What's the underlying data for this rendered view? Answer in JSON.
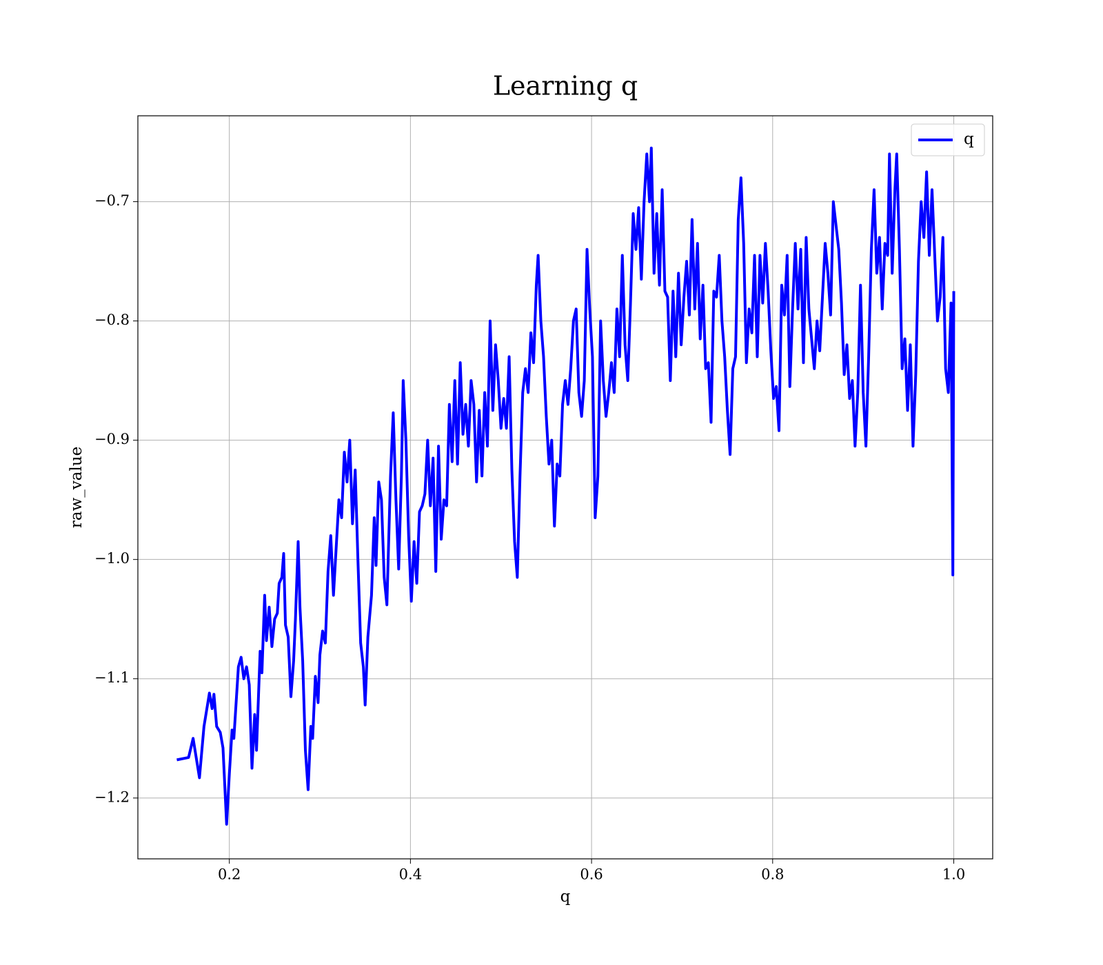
{
  "chart_data": {
    "type": "line",
    "title": "Learning q",
    "x_label": "q",
    "y_label": "raw_value",
    "legend": "upper right",
    "grid": true,
    "xlim": [
      0.099,
      1.043
    ],
    "ylim": [
      -1.251,
      -0.628
    ],
    "xticks": [
      0.2,
      0.4,
      0.6,
      0.8,
      {
        "value": 1,
        "label": "1.0"
      }
    ],
    "yticks": [
      {
        "value": -0.7,
        "label": "−0.7"
      },
      {
        "value": -0.8,
        "label": "−0.8"
      },
      {
        "value": -0.9,
        "label": "−0.9"
      },
      {
        "value": -1,
        "label": "−1.0"
      },
      {
        "value": -1.1,
        "label": "−1.1"
      },
      {
        "value": -1.2,
        "label": "−1.2"
      }
    ],
    "x": [
      0.142,
      0.155,
      0.16,
      0.167,
      0.172,
      0.178,
      0.181,
      0.183,
      0.186,
      0.19,
      0.193,
      0.197,
      0.2,
      0.203,
      0.205,
      0.21,
      0.213,
      0.216,
      0.219,
      0.222,
      0.225,
      0.228,
      0.23,
      0.234,
      0.236,
      0.239,
      0.241,
      0.244,
      0.247,
      0.25,
      0.253,
      0.255,
      0.258,
      0.26,
      0.262,
      0.265,
      0.268,
      0.271,
      0.273,
      0.276,
      0.278,
      0.281,
      0.284,
      0.287,
      0.29,
      0.292,
      0.295,
      0.298,
      0.3,
      0.303,
      0.306,
      0.309,
      0.312,
      0.315,
      0.318,
      0.321,
      0.324,
      0.327,
      0.33,
      0.333,
      0.336,
      0.339,
      0.342,
      0.345,
      0.348,
      0.35,
      0.353,
      0.357,
      0.36,
      0.362,
      0.365,
      0.368,
      0.371,
      0.374,
      0.378,
      0.381,
      0.384,
      0.387,
      0.39,
      0.392,
      0.395,
      0.398,
      0.401,
      0.404,
      0.407,
      0.41,
      0.413,
      0.416,
      0.419,
      0.422,
      0.425,
      0.428,
      0.431,
      0.434,
      0.437,
      0.44,
      0.443,
      0.446,
      0.449,
      0.452,
      0.455,
      0.458,
      0.461,
      0.464,
      0.467,
      0.47,
      0.473,
      0.476,
      0.479,
      0.482,
      0.485,
      0.488,
      0.491,
      0.494,
      0.497,
      0.5,
      0.503,
      0.506,
      0.509,
      0.512,
      0.515,
      0.518,
      0.521,
      0.524,
      0.527,
      0.53,
      0.533,
      0.536,
      0.539,
      0.541,
      0.544,
      0.547,
      0.55,
      0.553,
      0.556,
      0.559,
      0.562,
      0.565,
      0.568,
      0.571,
      0.574,
      0.577,
      0.58,
      0.583,
      0.586,
      0.589,
      0.592,
      0.595,
      0.598,
      0.601,
      0.604,
      0.607,
      0.61,
      0.613,
      0.616,
      0.619,
      0.622,
      0.625,
      0.628,
      0.631,
      0.634,
      0.637,
      0.64,
      0.643,
      0.646,
      0.649,
      0.652,
      0.655,
      0.658,
      0.661,
      0.664,
      0.666,
      0.669,
      0.672,
      0.675,
      0.678,
      0.681,
      0.684,
      0.687,
      0.69,
      0.693,
      0.696,
      0.699,
      0.702,
      0.705,
      0.708,
      0.711,
      0.714,
      0.717,
      0.72,
      0.723,
      0.726,
      0.729,
      0.732,
      0.735,
      0.738,
      0.741,
      0.744,
      0.747,
      0.75,
      0.753,
      0.756,
      0.759,
      0.762,
      0.765,
      0.768,
      0.771,
      0.774,
      0.777,
      0.78,
      0.783,
      0.786,
      0.789,
      0.792,
      0.795,
      0.798,
      0.801,
      0.804,
      0.807,
      0.81,
      0.813,
      0.816,
      0.819,
      0.822,
      0.825,
      0.828,
      0.831,
      0.834,
      0.837,
      0.84,
      0.843,
      0.846,
      0.849,
      0.852,
      0.855,
      0.858,
      0.861,
      0.864,
      0.867,
      0.87,
      0.873,
      0.876,
      0.879,
      0.882,
      0.885,
      0.888,
      0.891,
      0.894,
      0.897,
      0.9,
      0.903,
      0.906,
      0.909,
      0.912,
      0.915,
      0.918,
      0.921,
      0.924,
      0.927,
      0.929,
      0.932,
      0.935,
      0.937,
      0.94,
      0.943,
      0.946,
      0.949,
      0.952,
      0.955,
      0.958,
      0.961,
      0.964,
      0.967,
      0.97,
      0.973,
      0.976,
      0.979,
      0.982,
      0.985,
      0.988,
      0.991,
      0.994,
      0.997,
      0.999,
      1.0
    ],
    "series": [
      {
        "name": "q",
        "color": "#0000ff",
        "values": [
          -1.168,
          -1.166,
          -1.15,
          -1.183,
          -1.14,
          -1.112,
          -1.125,
          -1.113,
          -1.14,
          -1.145,
          -1.158,
          -1.222,
          -1.18,
          -1.143,
          -1.15,
          -1.09,
          -1.082,
          -1.1,
          -1.09,
          -1.105,
          -1.175,
          -1.13,
          -1.16,
          -1.077,
          -1.095,
          -1.03,
          -1.068,
          -1.04,
          -1.073,
          -1.05,
          -1.045,
          -1.02,
          -1.015,
          -0.995,
          -1.055,
          -1.065,
          -1.115,
          -1.085,
          -1.05,
          -0.985,
          -1.04,
          -1.085,
          -1.16,
          -1.193,
          -1.14,
          -1.15,
          -1.098,
          -1.12,
          -1.08,
          -1.06,
          -1.07,
          -1.01,
          -0.98,
          -1.03,
          -0.99,
          -0.95,
          -0.965,
          -0.91,
          -0.935,
          -0.9,
          -0.97,
          -0.925,
          -1.0,
          -1.07,
          -1.09,
          -1.122,
          -1.065,
          -1.03,
          -0.965,
          -1.005,
          -0.935,
          -0.95,
          -1.015,
          -1.038,
          -0.93,
          -0.877,
          -0.95,
          -1.008,
          -0.93,
          -0.85,
          -0.9,
          -0.98,
          -1.035,
          -0.985,
          -1.02,
          -0.96,
          -0.955,
          -0.945,
          -0.9,
          -0.955,
          -0.915,
          -1.01,
          -0.905,
          -0.983,
          -0.95,
          -0.955,
          -0.87,
          -0.918,
          -0.85,
          -0.92,
          -0.835,
          -0.895,
          -0.87,
          -0.905,
          -0.85,
          -0.87,
          -0.935,
          -0.875,
          -0.93,
          -0.86,
          -0.905,
          -0.8,
          -0.875,
          -0.82,
          -0.85,
          -0.89,
          -0.865,
          -0.89,
          -0.83,
          -0.925,
          -0.985,
          -1.015,
          -0.93,
          -0.86,
          -0.84,
          -0.86,
          -0.81,
          -0.835,
          -0.77,
          -0.745,
          -0.8,
          -0.83,
          -0.88,
          -0.92,
          -0.9,
          -0.972,
          -0.92,
          -0.93,
          -0.87,
          -0.85,
          -0.87,
          -0.84,
          -0.8,
          -0.79,
          -0.86,
          -0.88,
          -0.85,
          -0.74,
          -0.79,
          -0.83,
          -0.965,
          -0.93,
          -0.8,
          -0.85,
          -0.88,
          -0.86,
          -0.835,
          -0.86,
          -0.79,
          -0.83,
          -0.745,
          -0.82,
          -0.85,
          -0.785,
          -0.71,
          -0.74,
          -0.705,
          -0.765,
          -0.7,
          -0.66,
          -0.7,
          -0.655,
          -0.76,
          -0.71,
          -0.77,
          -0.69,
          -0.775,
          -0.78,
          -0.85,
          -0.775,
          -0.83,
          -0.76,
          -0.82,
          -0.78,
          -0.75,
          -0.795,
          -0.715,
          -0.79,
          -0.735,
          -0.815,
          -0.77,
          -0.84,
          -0.835,
          -0.885,
          -0.775,
          -0.78,
          -0.745,
          -0.8,
          -0.83,
          -0.875,
          -0.912,
          -0.84,
          -0.83,
          -0.715,
          -0.68,
          -0.735,
          -0.835,
          -0.79,
          -0.81,
          -0.745,
          -0.83,
          -0.745,
          -0.785,
          -0.735,
          -0.775,
          -0.825,
          -0.865,
          -0.855,
          -0.892,
          -0.77,
          -0.795,
          -0.745,
          -0.855,
          -0.79,
          -0.735,
          -0.79,
          -0.74,
          -0.835,
          -0.73,
          -0.79,
          -0.815,
          -0.84,
          -0.8,
          -0.825,
          -0.78,
          -0.735,
          -0.76,
          -0.795,
          -0.7,
          -0.72,
          -0.74,
          -0.785,
          -0.845,
          -0.82,
          -0.865,
          -0.85,
          -0.905,
          -0.86,
          -0.77,
          -0.86,
          -0.905,
          -0.83,
          -0.74,
          -0.69,
          -0.76,
          -0.73,
          -0.79,
          -0.735,
          -0.745,
          -0.66,
          -0.76,
          -0.69,
          -0.66,
          -0.74,
          -0.84,
          -0.815,
          -0.875,
          -0.82,
          -0.905,
          -0.845,
          -0.75,
          -0.7,
          -0.73,
          -0.675,
          -0.745,
          -0.69,
          -0.745,
          -0.8,
          -0.78,
          -0.73,
          -0.84,
          -0.86,
          -0.785,
          -1.013,
          -0.775
        ]
      }
    ]
  }
}
